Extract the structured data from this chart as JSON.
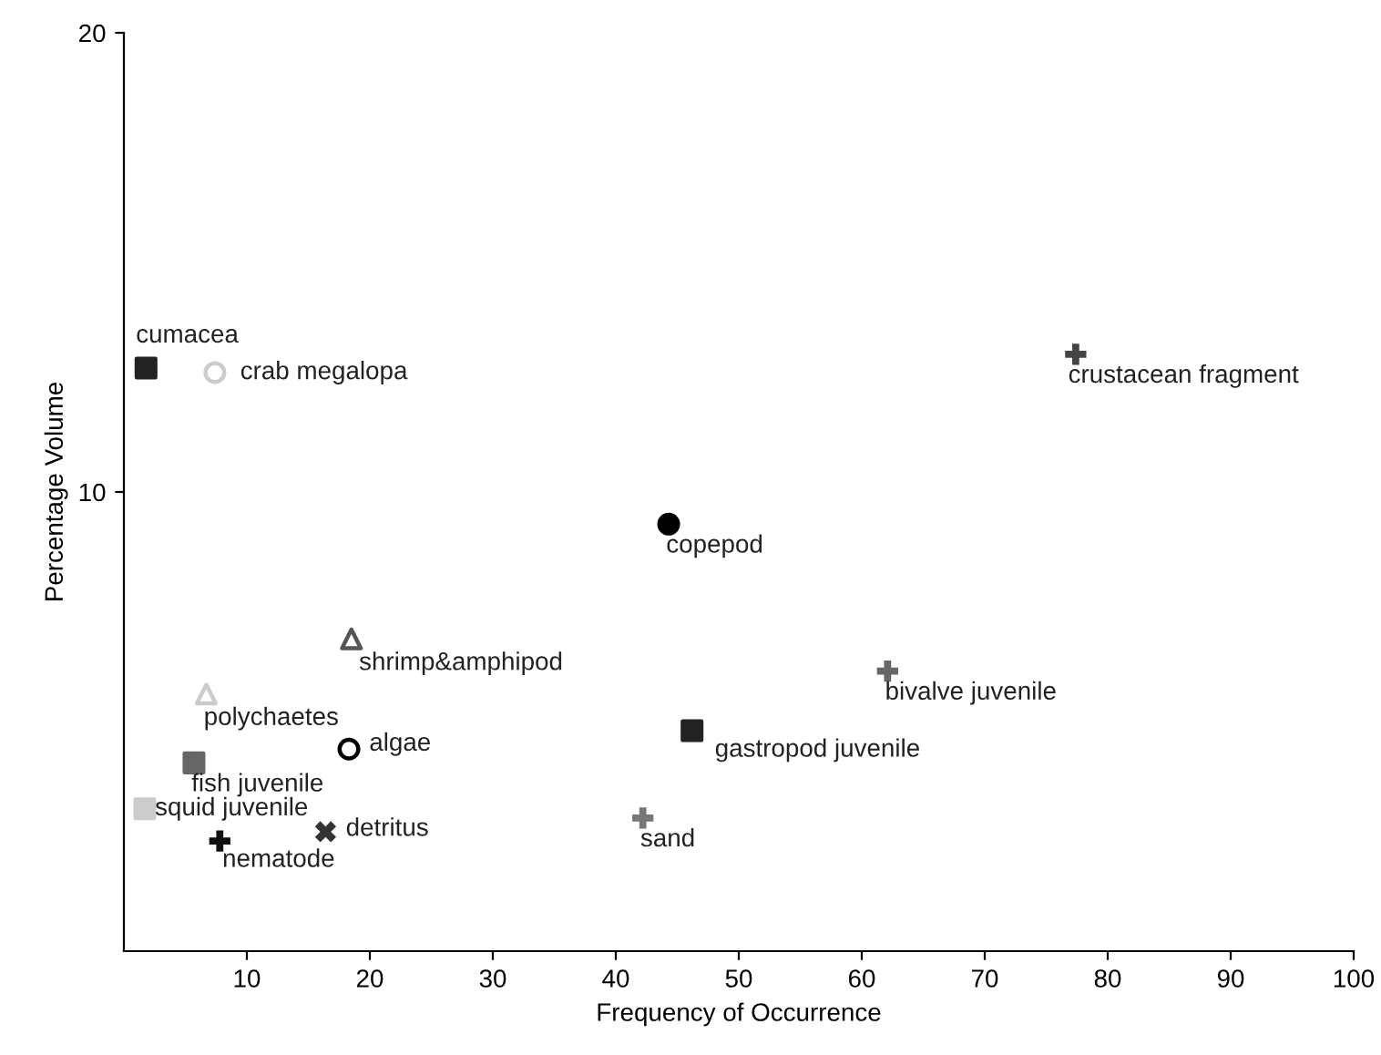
{
  "chart_data": {
    "type": "scatter",
    "xlabel": "Frequency of Occurrence",
    "ylabel": "Percentage Volume",
    "xlim": [
      0,
      100
    ],
    "ylim": [
      0,
      20
    ],
    "xticks": [
      10,
      20,
      30,
      40,
      50,
      60,
      70,
      80,
      90,
      100
    ],
    "yticks": [
      10,
      20
    ],
    "grid": false,
    "legend": false,
    "series": [
      {
        "name": "cumacea",
        "color": "#222222",
        "marker": "square",
        "x": [
          1.8
        ],
        "values": [
          12.7
        ]
      },
      {
        "name": "crab megalopa",
        "color": "#cccccc",
        "marker": "circle-open",
        "x": [
          7.4
        ],
        "values": [
          12.6
        ]
      },
      {
        "name": "crustacean fragment",
        "color": "#444444",
        "marker": "cross",
        "x": [
          77.4
        ],
        "values": [
          13.0
        ]
      },
      {
        "name": "copepod",
        "color": "#000000",
        "marker": "circle",
        "x": [
          44.3
        ],
        "values": [
          9.3
        ]
      },
      {
        "name": "shrimp&amphipod",
        "color": "#555555",
        "marker": "triangle-open",
        "x": [
          18.5
        ],
        "values": [
          6.8
        ]
      },
      {
        "name": "bivalve juvenile",
        "color": "#666666",
        "marker": "cross",
        "x": [
          62.1
        ],
        "values": [
          6.1
        ]
      },
      {
        "name": "polychaetes",
        "color": "#cccccc",
        "marker": "triangle-open",
        "x": [
          6.7
        ],
        "values": [
          5.6
        ]
      },
      {
        "name": "algae",
        "color": "#000000",
        "marker": "circle-open",
        "x": [
          18.3
        ],
        "values": [
          4.4
        ]
      },
      {
        "name": "gastropod juvenile",
        "color": "#222222",
        "marker": "square",
        "x": [
          46.2
        ],
        "values": [
          4.8
        ]
      },
      {
        "name": "fish juvenile",
        "color": "#666666",
        "marker": "square",
        "x": [
          5.7
        ],
        "values": [
          4.1
        ]
      },
      {
        "name": "squid juvenile",
        "color": "#cccccc",
        "marker": "square",
        "x": [
          1.7
        ],
        "values": [
          3.1
        ]
      },
      {
        "name": "detritus",
        "color": "#333333",
        "marker": "x",
        "x": [
          16.4
        ],
        "values": [
          2.6
        ]
      },
      {
        "name": "sand",
        "color": "#777777",
        "marker": "cross",
        "x": [
          42.2
        ],
        "values": [
          2.9
        ]
      },
      {
        "name": "nematode",
        "color": "#111111",
        "marker": "cross",
        "x": [
          7.8
        ],
        "values": [
          2.4
        ]
      }
    ]
  }
}
